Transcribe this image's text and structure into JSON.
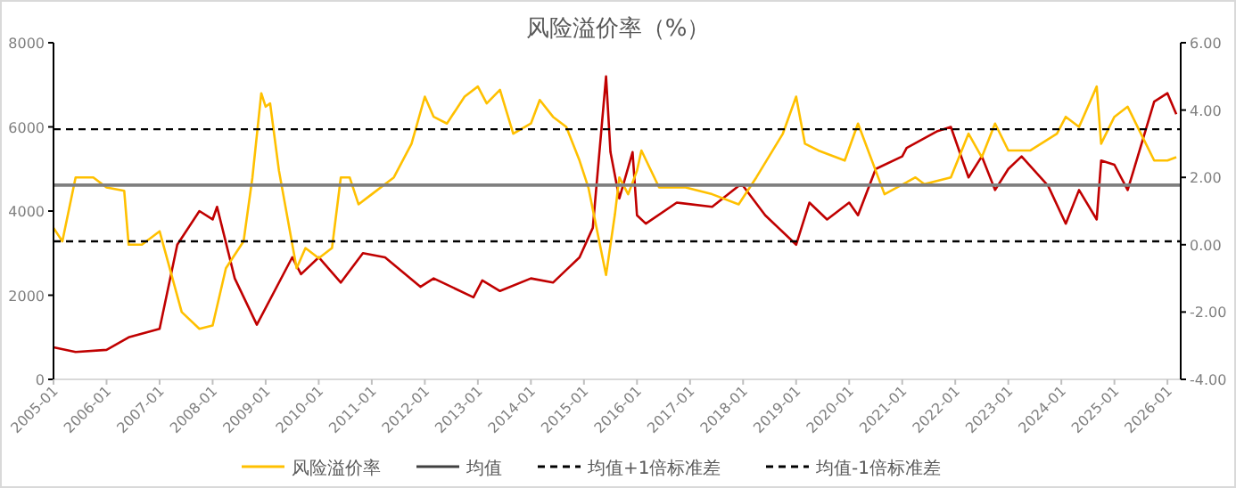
{
  "chart_data": {
    "type": "line",
    "title": "风险溢价率（%）",
    "legend": "bottom",
    "grid": false,
    "marker": "none",
    "line_style": "solid",
    "xlim": [
      "2005-01",
      "2026-04"
    ],
    "xticks": [
      {
        "value": "2005-01",
        "label": "2005-01"
      },
      {
        "value": "2006-01",
        "label": "2006-01"
      },
      {
        "value": "2007-01",
        "label": "2007-01"
      },
      {
        "value": "2008-01",
        "label": "2008-01"
      },
      {
        "value": "2009-01",
        "label": "2009-01"
      },
      {
        "value": "2010-01",
        "label": "2010-01"
      },
      {
        "value": "2011-01",
        "label": "2011-01"
      },
      {
        "value": "2012-01",
        "label": "2012-01"
      },
      {
        "value": "2013-01",
        "label": "2013-01"
      },
      {
        "value": "2014-01",
        "label": "2014-01"
      },
      {
        "value": "2015-01",
        "label": "2015-01"
      },
      {
        "value": "2016-01",
        "label": "2016-01"
      },
      {
        "value": "2017-01",
        "label": "2017-01"
      },
      {
        "value": "2018-01",
        "label": "2018-01"
      },
      {
        "value": "2019-01",
        "label": "2019-01"
      },
      {
        "value": "2020-01",
        "label": "2020-01"
      },
      {
        "value": "2021-01",
        "label": "2021-01"
      },
      {
        "value": "2022-01",
        "label": "2022-01"
      },
      {
        "value": "2023-01",
        "label": "2023-01"
      },
      {
        "value": "2024-01",
        "label": "2024-01"
      },
      {
        "value": "2025-01",
        "label": "2025-01"
      },
      {
        "value": "2026-01",
        "label": "2026-01"
      }
    ],
    "ylim": [
      0,
      8000
    ],
    "yticks": [
      0,
      2000,
      4000,
      6000,
      8000
    ],
    "y2lim": [
      -4,
      6
    ],
    "y2ticks": [
      {
        "value": -4,
        "label": "-4.00"
      },
      {
        "value": -2,
        "label": "-2.00"
      },
      {
        "value": 0,
        "label": "0.00"
      },
      {
        "value": 2,
        "label": "2.00"
      },
      {
        "value": 4,
        "label": "4.00"
      },
      {
        "value": 6,
        "label": "6.00"
      }
    ],
    "series": [
      {
        "color": "#c00000",
        "x": [
          "2005-01",
          "2005-06",
          "2006-01",
          "2006-06",
          "2007-01",
          "2007-05",
          "2007-10",
          "2008-01",
          "2008-02",
          "2008-06",
          "2008-11",
          "2009-07",
          "2009-09",
          "2010-01",
          "2010-06",
          "2010-11",
          "2011-04",
          "2011-12",
          "2012-03",
          "2012-12",
          "2013-02",
          "2013-06",
          "2014-01",
          "2014-06",
          "2014-09",
          "2014-12",
          "2015-03",
          "2015-06",
          "2015-07",
          "2015-09",
          "2015-12",
          "2016-01",
          "2016-03",
          "2016-10",
          "2017-06",
          "2017-12",
          "2018-01",
          "2018-06",
          "2019-01",
          "2019-04",
          "2019-08",
          "2020-01",
          "2020-03",
          "2020-07",
          "2021-01",
          "2021-02",
          "2021-09",
          "2021-12",
          "2022-04",
          "2022-07",
          "2022-10",
          "2023-01",
          "2023-04",
          "2023-10",
          "2024-02",
          "2024-05",
          "2024-09",
          "2024-10",
          "2025-01",
          "2025-04",
          "2025-06",
          "2025-10",
          "2026-01",
          "2026-03"
        ],
        "values": [
          760,
          650,
          700,
          1000,
          1200,
          3200,
          4000,
          3800,
          4100,
          2400,
          1300,
          2900,
          2500,
          2900,
          2300,
          3000,
          2900,
          2200,
          2400,
          1950,
          2350,
          2100,
          2400,
          2300,
          2600,
          2900,
          3600,
          7200,
          5400,
          4300,
          5400,
          3900,
          3700,
          4200,
          4100,
          4600,
          4600,
          3900,
          3200,
          4200,
          3800,
          4200,
          3900,
          5000,
          5300,
          5500,
          5900,
          6000,
          4800,
          5300,
          4500,
          5000,
          5300,
          4600,
          3700,
          4500,
          3800,
          5200,
          5100,
          4500,
          5200,
          6600,
          6800,
          6300
        ]
      },
      {
        "name": "风险溢价率",
        "color": "#ffc000",
        "axis": "y2",
        "x": [
          "2005-01",
          "2005-03",
          "2005-06",
          "2005-10",
          "2006-01",
          "2006-05",
          "2006-06",
          "2006-09",
          "2007-01",
          "2007-06",
          "2007-10",
          "2008-01",
          "2008-04",
          "2008-08",
          "2008-10",
          "2008-12",
          "2009-01",
          "2009-02",
          "2009-04",
          "2009-08",
          "2009-10",
          "2010-01",
          "2010-04",
          "2010-06",
          "2010-08",
          "2010-10",
          "2011-01",
          "2011-06",
          "2011-10",
          "2012-01",
          "2012-03",
          "2012-06",
          "2012-10",
          "2013-01",
          "2013-03",
          "2013-06",
          "2013-09",
          "2014-01",
          "2014-03",
          "2014-06",
          "2014-09",
          "2014-12",
          "2015-02",
          "2015-06",
          "2015-08",
          "2015-09",
          "2015-11",
          "2016-01",
          "2016-02",
          "2016-06",
          "2016-12",
          "2017-06",
          "2017-12",
          "2018-04",
          "2018-10",
          "2019-01",
          "2019-03",
          "2019-06",
          "2019-12",
          "2020-03",
          "2020-09",
          "2021-04",
          "2021-06",
          "2021-12",
          "2022-04",
          "2022-07",
          "2022-10",
          "2023-01",
          "2023-06",
          "2023-12",
          "2024-02",
          "2024-05",
          "2024-09",
          "2024-10",
          "2025-01",
          "2025-04",
          "2025-07",
          "2025-10",
          "2026-01",
          "2026-03"
        ],
        "values": [
          0.5,
          0.1,
          2.0,
          2.0,
          1.7,
          1.6,
          0.0,
          0.0,
          0.4,
          -2.0,
          -2.5,
          -2.4,
          -0.7,
          0.1,
          2.0,
          4.5,
          4.1,
          4.2,
          2.2,
          -0.7,
          -0.1,
          -0.4,
          -0.1,
          2.0,
          2.0,
          1.2,
          1.5,
          2.0,
          3.0,
          4.4,
          3.8,
          3.6,
          4.4,
          4.7,
          4.2,
          4.6,
          3.3,
          3.6,
          4.3,
          3.8,
          3.5,
          2.5,
          1.7,
          -0.9,
          0.9,
          2.0,
          1.5,
          2.2,
          2.8,
          1.7,
          1.7,
          1.5,
          1.2,
          2.0,
          3.3,
          4.4,
          3.0,
          2.8,
          2.5,
          3.6,
          1.5,
          2.0,
          1.8,
          2.0,
          3.3,
          2.6,
          3.6,
          2.8,
          2.8,
          3.3,
          3.8,
          3.5,
          4.7,
          3.0,
          3.8,
          4.1,
          3.3,
          2.5,
          2.5,
          2.6
        ]
      }
    ],
    "ref_lines": [
      {
        "axis": "y2",
        "value": 1.77,
        "label": "均值",
        "color": "#7f7f7f",
        "line_style": "solid"
      },
      {
        "axis": "y2",
        "value": 3.43,
        "label": "均值+1倍标准差",
        "color": "#000000",
        "line_style": "dashed"
      },
      {
        "axis": "y2",
        "value": 0.1,
        "label": "均值-1倍标准差",
        "color": "#000000",
        "line_style": "dashed"
      }
    ]
  }
}
